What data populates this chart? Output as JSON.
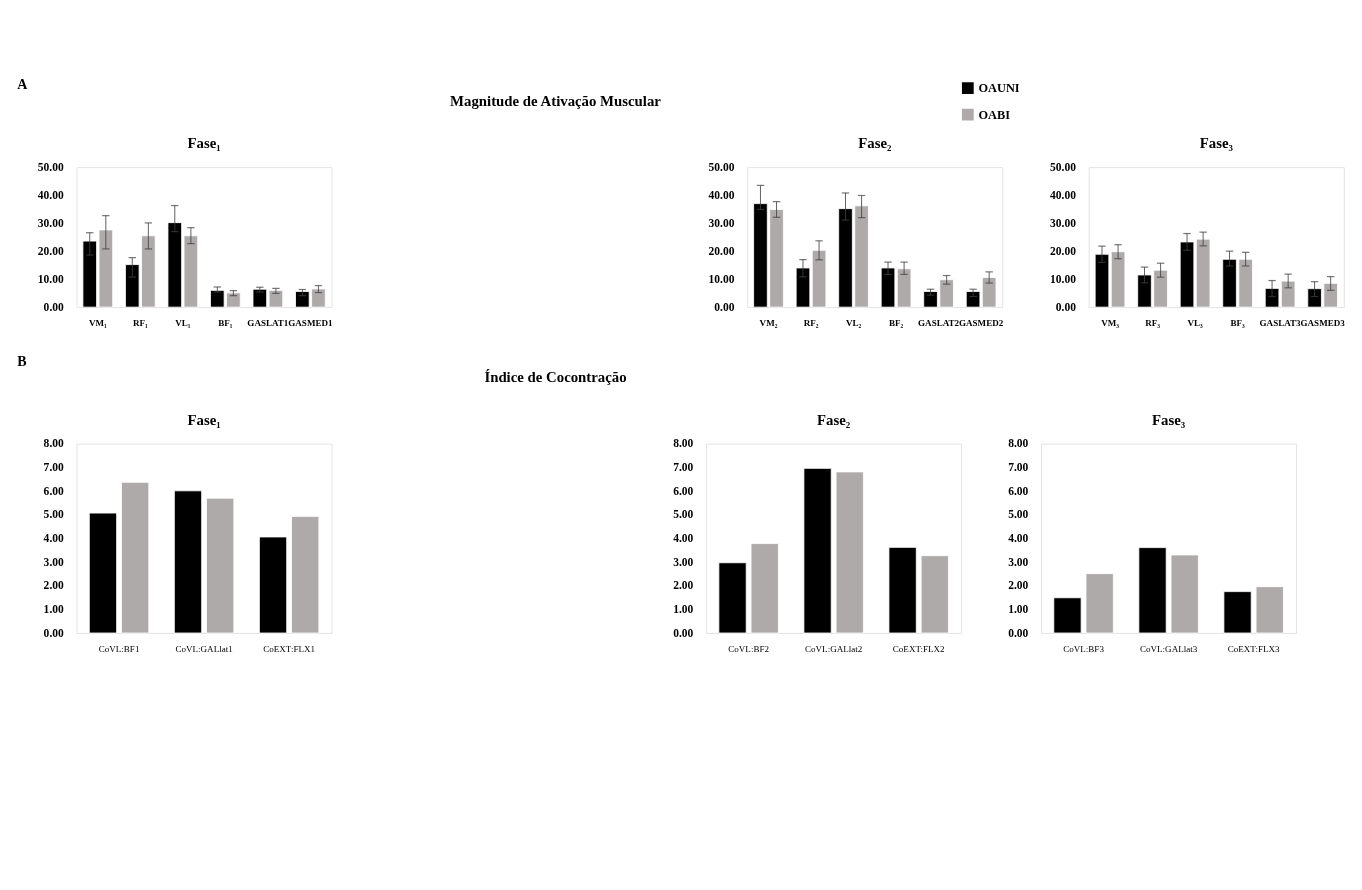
{
  "chart_data": [
    {
      "type": "bar",
      "title": "Fase₁",
      "annotations": [
        "A",
        "Magnitude de Ativação Muscular"
      ],
      "legend": "top right",
      "categories": [
        "VM₁",
        "RF₁",
        "VL₁",
        "BF₁",
        "GASLAT1",
        "GASMED1"
      ],
      "ylim": [
        0,
        50
      ],
      "yticks": [
        {
          "value": 0,
          "label": "0.00"
        },
        {
          "value": 10,
          "label": "10.00"
        },
        {
          "value": 20,
          "label": "20.00"
        },
        {
          "value": 30,
          "label": "30.00"
        },
        {
          "value": 40,
          "label": "40.00"
        },
        {
          "value": 50,
          "label": "50.00"
        }
      ],
      "series": [
        {
          "name": "OAUNI",
          "color": "#000000",
          "values": [
            23.6,
            15.2,
            30.2,
            6.0,
            6.4,
            5.6
          ],
          "errors": [
            [
              18.6,
              26.6
            ],
            [
              10.7,
              17.7
            ],
            [
              27.0,
              36.3
            ],
            [
              5.4,
              7.2
            ],
            [
              5.4,
              7.1
            ],
            [
              4.1,
              6.3
            ]
          ]
        },
        {
          "name": "OABI",
          "color": "#aeaaaa",
          "values": [
            27.6,
            25.5,
            25.5,
            5.1,
            6.0,
            6.5
          ],
          "errors": [
            [
              20.8,
              32.7
            ],
            [
              20.8,
              30.1
            ],
            [
              22.7,
              28.4
            ],
            [
              4.1,
              5.9
            ],
            [
              4.9,
              6.7
            ],
            [
              5.2,
              7.7
            ]
          ]
        }
      ]
    },
    {
      "type": "bar",
      "title": "Fase₂",
      "categories": [
        "VM₂",
        "RF₂",
        "VL₂",
        "BF₂",
        "GASLAT2",
        "GASMED2"
      ],
      "ylim": [
        0,
        50
      ],
      "yticks": [
        {
          "value": 0,
          "label": "0.00"
        },
        {
          "value": 10,
          "label": "10.00"
        },
        {
          "value": 20,
          "label": "20.00"
        },
        {
          "value": 30,
          "label": "30.00"
        },
        {
          "value": 40,
          "label": "40.00"
        },
        {
          "value": 50,
          "label": "50.00"
        }
      ],
      "series": [
        {
          "color": "#000000",
          "values": [
            37.0,
            14.0,
            35.2,
            14.0,
            5.6,
            5.6
          ],
          "errors": [
            [
              34.9,
              43.5
            ],
            [
              10.8,
              17.0
            ],
            [
              31.1,
              40.8
            ],
            [
              11.7,
              16.1
            ],
            [
              4.3,
              6.4
            ],
            [
              3.8,
              6.4
            ]
          ]
        },
        {
          "color": "#aeaaaa",
          "values": [
            34.9,
            20.3,
            36.2,
            13.7,
            9.8,
            10.6
          ],
          "errors": [
            [
              32.1,
              37.7
            ],
            [
              16.9,
              23.7
            ],
            [
              32.0,
              39.9
            ],
            [
              11.7,
              16.1
            ],
            [
              8.2,
              11.3
            ],
            [
              8.6,
              12.6
            ]
          ]
        }
      ]
    },
    {
      "type": "bar",
      "title": "Fase₃",
      "categories": [
        "VM₃",
        "RF₃",
        "VL₃",
        "BF₃",
        "GASLAT3",
        "GASMED3"
      ],
      "ylim": [
        0,
        50
      ],
      "yticks": [
        {
          "value": 0,
          "label": "0.00"
        },
        {
          "value": 10,
          "label": "10.00"
        },
        {
          "value": 20,
          "label": "20.00"
        },
        {
          "value": 30,
          "label": "30.00"
        },
        {
          "value": 40,
          "label": "40.00"
        },
        {
          "value": 50,
          "label": "50.00"
        }
      ],
      "series": [
        {
          "color": "#000000",
          "values": [
            18.9,
            11.5,
            23.3,
            17.1,
            6.7,
            6.6
          ],
          "errors": [
            [
              16.0,
              21.8
            ],
            [
              8.7,
              14.3
            ],
            [
              20.3,
              26.3
            ],
            [
              14.7,
              20.0
            ],
            [
              3.8,
              9.5
            ],
            [
              3.8,
              9.1
            ]
          ]
        },
        {
          "color": "#aeaaaa",
          "values": [
            19.8,
            13.2,
            24.3,
            17.1,
            9.3,
            8.5
          ],
          "errors": [
            [
              17.3,
              22.3
            ],
            [
              10.7,
              15.7
            ],
            [
              21.9,
              26.8
            ],
            [
              14.7,
              19.6
            ],
            [
              6.9,
              11.8
            ],
            [
              6.0,
              10.9
            ]
          ]
        }
      ]
    },
    {
      "type": "bar",
      "title": "Fase₁",
      "annotations": [
        "B",
        "Índice de Cocontração"
      ],
      "categories": [
        "CoVL:BF1",
        "CoVL:GALlat1",
        "CoEXT:FLX1"
      ],
      "ylim": [
        0,
        8
      ],
      "yticks": [
        {
          "value": 0,
          "label": "0.00"
        },
        {
          "value": 1,
          "label": "1.00"
        },
        {
          "value": 2,
          "label": "2.00"
        },
        {
          "value": 3,
          "label": "3.00"
        },
        {
          "value": 4,
          "label": "4.00"
        },
        {
          "value": 5,
          "label": "5.00"
        },
        {
          "value": 6,
          "label": "6.00"
        },
        {
          "value": 7,
          "label": "7.00"
        },
        {
          "value": 8,
          "label": "8.00"
        }
      ],
      "series": [
        {
          "color": "#000000",
          "values": [
            5.07,
            6.01,
            4.06
          ]
        },
        {
          "color": "#aeaaaa",
          "values": [
            6.37,
            5.7,
            4.93
          ]
        }
      ]
    },
    {
      "type": "bar",
      "title": "Fase₂",
      "categories": [
        "CoVL:BF2",
        "CoVL:GALlat2",
        "CoEXT:FLX2"
      ],
      "ylim": [
        0,
        8
      ],
      "yticks": [
        {
          "value": 0,
          "label": "0.00"
        },
        {
          "value": 1,
          "label": "1.00"
        },
        {
          "value": 2,
          "label": "2.00"
        },
        {
          "value": 3,
          "label": "3.00"
        },
        {
          "value": 4,
          "label": "4.00"
        },
        {
          "value": 5,
          "label": "5.00"
        },
        {
          "value": 6,
          "label": "6.00"
        },
        {
          "value": 7,
          "label": "7.00"
        },
        {
          "value": 8,
          "label": "8.00"
        }
      ],
      "series": [
        {
          "color": "#000000",
          "values": [
            2.97,
            6.96,
            3.62
          ]
        },
        {
          "color": "#aeaaaa",
          "values": [
            3.78,
            6.81,
            3.27
          ]
        }
      ]
    },
    {
      "type": "bar",
      "title": "Fase₃",
      "categories": [
        "CoVL:BF3",
        "CoVL:GALlat3",
        "CoEXT:FLX3"
      ],
      "ylim": [
        0,
        8
      ],
      "yticks": [
        {
          "value": 0,
          "label": "0.00"
        },
        {
          "value": 1,
          "label": "1.00"
        },
        {
          "value": 2,
          "label": "2.00"
        },
        {
          "value": 3,
          "label": "3.00"
        },
        {
          "value": 4,
          "label": "4.00"
        },
        {
          "value": 5,
          "label": "5.00"
        },
        {
          "value": 6,
          "label": "6.00"
        },
        {
          "value": 7,
          "label": "7.00"
        },
        {
          "value": 8,
          "label": "8.00"
        }
      ],
      "series": [
        {
          "color": "#000000",
          "values": [
            1.49,
            3.61,
            1.75
          ]
        },
        {
          "color": "#aeaaaa",
          "values": [
            2.51,
            3.3,
            1.96
          ]
        }
      ]
    }
  ]
}
